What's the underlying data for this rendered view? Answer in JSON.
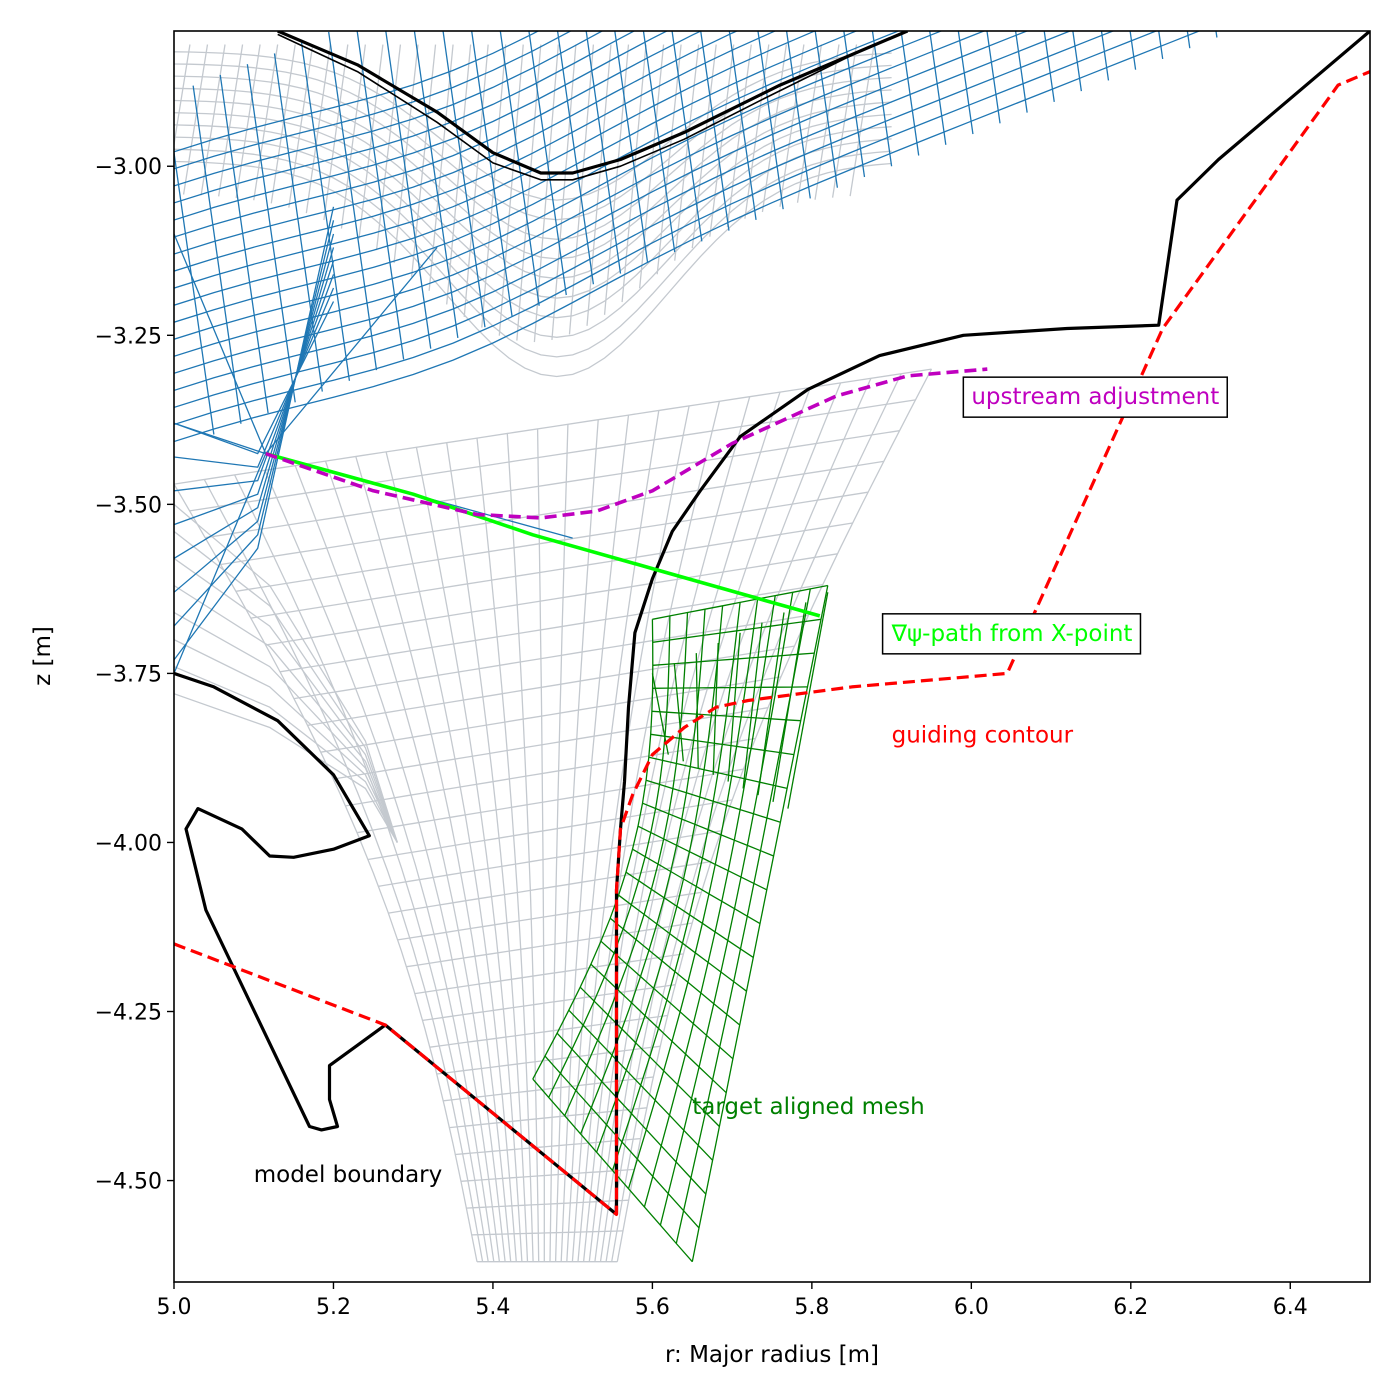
{
  "chart_data": {
    "type": "line",
    "xlabel": "r: Major radius [m]",
    "ylabel": "z [m]",
    "xlim": [
      5.0,
      6.5
    ],
    "ylim": [
      -4.65,
      -2.8
    ],
    "grid": false,
    "x_ticks": [
      5.0,
      5.2,
      5.4,
      5.6,
      5.8,
      6.0,
      6.2,
      6.4
    ],
    "x_tick_labels": [
      "5.0",
      "5.2",
      "5.4",
      "5.6",
      "5.8",
      "6.0",
      "6.2",
      "6.4"
    ],
    "y_ticks": [
      -3.0,
      -3.25,
      -3.5,
      -3.75,
      -4.0,
      -4.25,
      -4.5
    ],
    "y_tick_labels": [
      "−3.00",
      "−3.25",
      "−3.50",
      "−3.75",
      "−4.00",
      "−4.25",
      "−4.50"
    ],
    "colors": {
      "upstream_mesh": "#1f77b4",
      "background_mesh": "#c4c9cf",
      "target_mesh": "#008000",
      "model_boundary": "#000000",
      "guiding_contour": "#ff0000",
      "grad_psi_path": "#00ff00",
      "upstream_adjustment": "#bf00bf"
    },
    "x_point": [
      5.115,
      -3.425
    ],
    "series": [
      {
        "name": "model boundary (upper wall)",
        "style": "solid-black",
        "x": [
          5.13,
          5.23,
          5.33,
          5.4,
          5.46,
          5.5,
          5.56,
          5.64,
          5.76,
          5.92
        ],
        "y": [
          -2.8,
          -2.85,
          -2.92,
          -2.98,
          -3.01,
          -3.01,
          -2.99,
          -2.95,
          -2.88,
          -2.8
        ]
      },
      {
        "name": "model boundary (upper wall inner)",
        "style": "solid-black-thin",
        "x": [
          5.13,
          5.23,
          5.33,
          5.4,
          5.46,
          5.5,
          5.56,
          5.64,
          5.74,
          5.86
        ],
        "y": [
          -2.805,
          -2.86,
          -2.935,
          -2.995,
          -3.02,
          -3.02,
          -3.0,
          -2.96,
          -2.9,
          -2.83
        ]
      },
      {
        "name": "model boundary (outer target)",
        "style": "solid-black",
        "x": [
          5.555,
          5.555,
          5.56,
          5.565,
          5.57,
          5.578,
          5.6,
          5.625,
          5.66,
          5.71,
          5.795,
          5.885,
          5.99,
          6.12,
          6.235,
          6.258,
          6.31,
          6.5
        ],
        "y": [
          -4.55,
          -4.07,
          -3.98,
          -3.91,
          -3.8,
          -3.69,
          -3.61,
          -3.54,
          -3.48,
          -3.4,
          -3.33,
          -3.28,
          -3.25,
          -3.24,
          -3.235,
          -3.05,
          -2.99,
          -2.8
        ]
      },
      {
        "name": "model boundary (inner dome)",
        "style": "solid-black",
        "x": [
          5.0,
          5.05,
          5.13,
          5.2,
          5.245,
          5.2,
          5.15,
          5.12,
          5.085,
          5.03,
          5.015,
          5.04,
          5.17,
          5.185,
          5.205,
          5.195,
          5.195,
          5.23,
          5.265,
          5.555
        ],
        "y": [
          -3.75,
          -3.77,
          -3.82,
          -3.9,
          -3.99,
          -4.01,
          -4.022,
          -4.02,
          -3.98,
          -3.95,
          -3.98,
          -4.1,
          -4.42,
          -4.425,
          -4.42,
          -4.38,
          -4.33,
          -4.3,
          -4.27,
          -4.55
        ]
      },
      {
        "name": "guiding contour",
        "style": "dashed-red",
        "x": [
          5.0,
          5.265,
          5.555,
          5.555,
          5.56,
          5.575,
          5.6,
          5.64,
          5.68,
          5.72,
          5.85,
          6.045,
          6.24,
          6.46,
          6.5
        ],
        "y": [
          -4.15,
          -4.27,
          -4.55,
          -4.07,
          -3.98,
          -3.93,
          -3.87,
          -3.83,
          -3.8,
          -3.79,
          -3.77,
          -3.75,
          -3.24,
          -2.88,
          -2.86
        ]
      },
      {
        "name": "∇ψ-path from X-point",
        "style": "solid-lime",
        "x": [
          5.115,
          5.3,
          5.45,
          5.6,
          5.81
        ],
        "y": [
          -3.425,
          -3.485,
          -3.545,
          -3.595,
          -3.665
        ]
      },
      {
        "name": "upstream adjustment",
        "style": "dashed-magenta",
        "x": [
          5.115,
          5.25,
          5.38,
          5.46,
          5.53,
          5.6,
          5.7,
          5.83,
          5.92,
          6.02
        ],
        "y": [
          -3.425,
          -3.48,
          -3.515,
          -3.52,
          -3.51,
          -3.48,
          -3.41,
          -3.34,
          -3.31,
          -3.3
        ]
      }
    ],
    "target_aligned_mesh": {
      "name": "target aligned mesh",
      "r_bottom": [
        5.45,
        5.65
      ],
      "z_bottom": [
        -4.35,
        -4.62
      ],
      "r_top": [
        5.6,
        5.82
      ],
      "z_top": [
        -3.67,
        -3.62
      ],
      "r_right_bottom": 5.77,
      "z_right_bottom": -3.95
    },
    "annotations": [
      {
        "text": "upstream adjustment",
        "x": 6.0,
        "y": -3.34,
        "color": "#bf00bf",
        "boxed": true
      },
      {
        "text": "∇ψ-path from X-point",
        "x": 5.9,
        "y": -3.69,
        "color": "#00ff00",
        "boxed": true
      },
      {
        "text": "guiding contour",
        "x": 5.9,
        "y": -3.84,
        "color": "#ff0000",
        "boxed": false
      },
      {
        "text": "target aligned mesh",
        "x": 5.65,
        "y": -4.39,
        "color": "#008000",
        "boxed": false
      },
      {
        "text": "model boundary",
        "x": 5.1,
        "y": -4.49,
        "color": "#000000",
        "boxed": false
      }
    ]
  }
}
